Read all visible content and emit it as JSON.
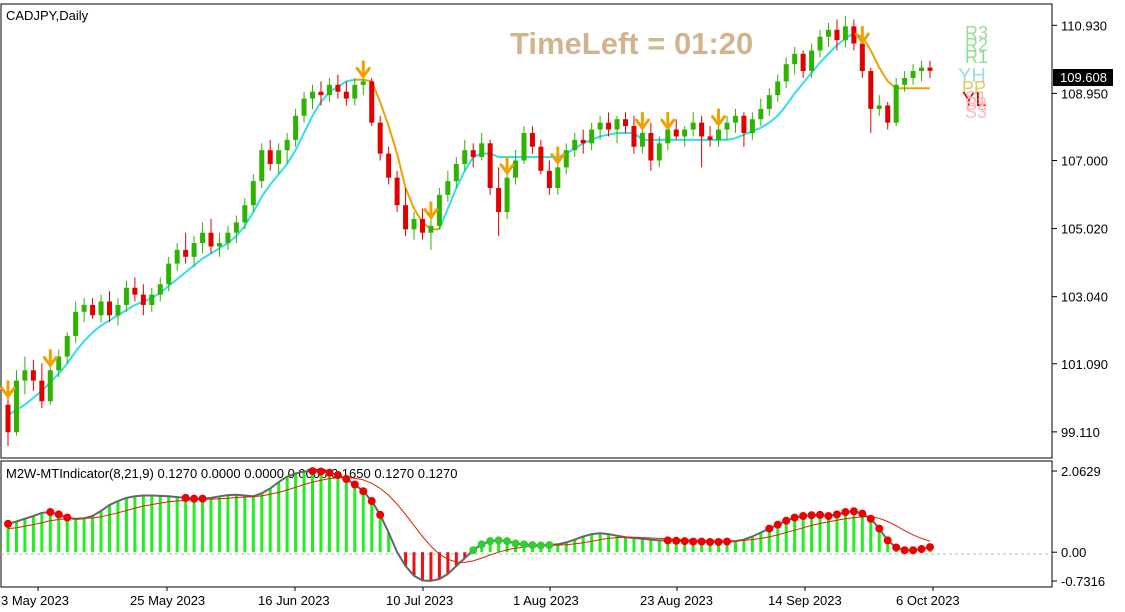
{
  "window": {
    "symbol_label": "CADJPY,Daily",
    "timeleft_label": "TimeLeft = 01:20",
    "current_price_label": "109.608"
  },
  "colors": {
    "bull_candle": "#2db300",
    "bear_candle": "#e00000",
    "signal_line_up": "#33ddee",
    "signal_line_down": "#f0a000",
    "arrow": "#f0a000",
    "timeleft": "#d2b48c",
    "hist_green": "#22ee22",
    "hist_red": "#ee1111",
    "dot_red": "#ee0000",
    "dot_green": "#33cc33",
    "signal_red_line": "#dd2200",
    "outline_gray": "#666666"
  },
  "icons": [
    "down-arrow-signal-icon"
  ],
  "pivot_labels": [
    "R3",
    "R2",
    "R1",
    "YH",
    "PP",
    "YL",
    "S1",
    "S2",
    "S3"
  ],
  "chart_data": [
    {
      "type": "candlestick",
      "title": "CADJPY,Daily",
      "xlabel": "",
      "ylabel": "",
      "ylim": [
        98.35,
        111.55
      ],
      "y_ticks": [
        "110.930",
        "108.950",
        "107.000",
        "105.020",
        "103.040",
        "101.090",
        "99.110"
      ],
      "x_ticks": [
        "3 May 2023",
        "25 May 2023",
        "16 Jun 2023",
        "10 Jul 2023",
        "1 Aug 2023",
        "23 Aug 2023",
        "14 Sep 2023",
        "6 Oct 2023"
      ],
      "current_price": 109.608,
      "candles_ohlc": [
        [
          99.9,
          100.2,
          98.7,
          99.1
        ],
        [
          99.1,
          100.9,
          99.0,
          100.6
        ],
        [
          100.6,
          101.3,
          100.2,
          100.9
        ],
        [
          100.9,
          101.2,
          100.3,
          100.6
        ],
        [
          100.6,
          101.1,
          99.8,
          100.0
        ],
        [
          100.0,
          101.1,
          99.9,
          100.9
        ],
        [
          100.9,
          101.5,
          100.7,
          101.3
        ],
        [
          101.3,
          102.0,
          101.1,
          101.9
        ],
        [
          101.9,
          102.9,
          101.7,
          102.6
        ],
        [
          102.6,
          103.0,
          102.3,
          102.8
        ],
        [
          102.8,
          103.0,
          102.4,
          102.5
        ],
        [
          102.5,
          103.1,
          102.3,
          102.9
        ],
        [
          102.9,
          103.2,
          102.3,
          102.5
        ],
        [
          102.5,
          103.0,
          102.2,
          102.8
        ],
        [
          102.8,
          103.5,
          102.6,
          103.3
        ],
        [
          103.3,
          103.6,
          102.9,
          103.1
        ],
        [
          103.1,
          103.4,
          102.5,
          102.8
        ],
        [
          102.8,
          103.3,
          102.6,
          103.1
        ],
        [
          103.1,
          103.6,
          102.9,
          103.4
        ],
        [
          103.4,
          104.2,
          103.2,
          104.0
        ],
        [
          104.0,
          104.6,
          103.8,
          104.4
        ],
        [
          104.4,
          104.9,
          104.0,
          104.2
        ],
        [
          104.2,
          104.8,
          103.9,
          104.6
        ],
        [
          104.6,
          105.2,
          104.3,
          104.9
        ],
        [
          104.9,
          105.3,
          104.3,
          104.5
        ],
        [
          104.5,
          104.9,
          104.2,
          104.6
        ],
        [
          104.6,
          105.1,
          104.4,
          104.9
        ],
        [
          104.9,
          105.4,
          104.6,
          105.2
        ],
        [
          105.2,
          105.9,
          105.0,
          105.7
        ],
        [
          105.7,
          106.6,
          105.5,
          106.4
        ],
        [
          106.4,
          107.5,
          106.2,
          107.3
        ],
        [
          107.3,
          107.6,
          106.7,
          106.9
        ],
        [
          106.9,
          107.5,
          106.6,
          107.3
        ],
        [
          107.3,
          107.8,
          106.9,
          107.6
        ],
        [
          107.6,
          108.5,
          107.4,
          108.3
        ],
        [
          108.3,
          109.0,
          108.1,
          108.8
        ],
        [
          108.8,
          109.2,
          108.5,
          109.0
        ],
        [
          109.0,
          109.3,
          108.6,
          108.9
        ],
        [
          108.9,
          109.4,
          108.7,
          109.2
        ],
        [
          109.2,
          109.5,
          108.8,
          109.0
        ],
        [
          109.0,
          109.3,
          108.6,
          108.8
        ],
        [
          108.8,
          109.4,
          108.6,
          109.2
        ],
        [
          109.2,
          109.5,
          108.9,
          109.3
        ],
        [
          109.3,
          109.4,
          108.0,
          108.1
        ],
        [
          108.1,
          108.3,
          107.0,
          107.2
        ],
        [
          107.2,
          107.4,
          106.3,
          106.5
        ],
        [
          106.5,
          106.7,
          105.5,
          105.7
        ],
        [
          105.7,
          106.2,
          104.8,
          105.0
        ],
        [
          105.0,
          105.5,
          104.7,
          105.3
        ],
        [
          105.3,
          105.6,
          104.7,
          104.9
        ],
        [
          104.9,
          105.4,
          104.4,
          105.1
        ],
        [
          105.1,
          106.2,
          105.0,
          106.0
        ],
        [
          106.0,
          106.7,
          105.8,
          106.4
        ],
        [
          106.4,
          107.1,
          106.2,
          106.9
        ],
        [
          106.9,
          107.6,
          106.7,
          107.3
        ],
        [
          107.3,
          107.5,
          106.8,
          107.1
        ],
        [
          107.1,
          107.8,
          107.0,
          107.5
        ],
        [
          107.5,
          107.6,
          106.0,
          106.2
        ],
        [
          106.2,
          106.8,
          104.8,
          105.5
        ],
        [
          105.5,
          106.7,
          105.3,
          106.5
        ],
        [
          106.5,
          107.3,
          106.3,
          107.0
        ],
        [
          107.0,
          108.0,
          106.9,
          107.8
        ],
        [
          107.8,
          108.0,
          107.2,
          107.4
        ],
        [
          107.4,
          107.6,
          106.6,
          106.7
        ],
        [
          106.7,
          107.0,
          106.0,
          106.2
        ],
        [
          106.2,
          107.0,
          106.0,
          106.8
        ],
        [
          106.8,
          107.5,
          106.6,
          107.3
        ],
        [
          107.3,
          107.8,
          107.1,
          107.6
        ],
        [
          107.6,
          107.9,
          107.2,
          107.5
        ],
        [
          107.5,
          108.1,
          107.3,
          107.9
        ],
        [
          107.9,
          108.3,
          107.6,
          108.1
        ],
        [
          108.1,
          108.4,
          107.7,
          107.9
        ],
        [
          107.9,
          108.3,
          107.5,
          108.2
        ],
        [
          108.2,
          108.4,
          107.8,
          108.0
        ],
        [
          108.0,
          108.3,
          107.2,
          107.4
        ],
        [
          107.4,
          108.0,
          107.2,
          107.8
        ],
        [
          107.8,
          108.1,
          106.7,
          107.0
        ],
        [
          107.0,
          107.7,
          106.8,
          107.5
        ],
        [
          107.5,
          108.0,
          107.3,
          107.9
        ],
        [
          107.9,
          108.2,
          107.6,
          107.7
        ],
        [
          107.7,
          108.0,
          107.4,
          107.9
        ],
        [
          107.9,
          108.4,
          107.7,
          108.1
        ],
        [
          108.1,
          108.3,
          106.8,
          107.7
        ],
        [
          107.7,
          108.0,
          107.4,
          107.6
        ],
        [
          107.6,
          108.1,
          107.4,
          107.9
        ],
        [
          107.9,
          108.3,
          107.6,
          108.1
        ],
        [
          108.1,
          108.5,
          107.8,
          108.3
        ],
        [
          108.3,
          108.4,
          107.4,
          107.8
        ],
        [
          107.8,
          108.4,
          107.6,
          108.2
        ],
        [
          108.2,
          108.8,
          108.0,
          108.5
        ],
        [
          108.5,
          109.1,
          108.3,
          108.9
        ],
        [
          108.9,
          109.5,
          108.7,
          109.3
        ],
        [
          109.3,
          110.0,
          109.1,
          109.8
        ],
        [
          109.8,
          110.3,
          109.5,
          110.1
        ],
        [
          110.1,
          110.2,
          109.4,
          109.6
        ],
        [
          109.6,
          110.4,
          109.4,
          110.2
        ],
        [
          110.2,
          110.8,
          110.0,
          110.6
        ],
        [
          110.6,
          111.0,
          110.3,
          110.8
        ],
        [
          110.8,
          111.1,
          110.2,
          110.5
        ],
        [
          110.5,
          111.2,
          110.3,
          110.9
        ],
        [
          110.9,
          111.1,
          110.2,
          110.4
        ],
        [
          110.4,
          110.5,
          109.4,
          109.6
        ],
        [
          109.6,
          109.7,
          107.8,
          108.5
        ],
        [
          108.5,
          108.9,
          108.3,
          108.6
        ],
        [
          108.6,
          108.7,
          107.9,
          108.1
        ],
        [
          108.1,
          109.4,
          108.0,
          109.2
        ],
        [
          109.2,
          109.6,
          109.0,
          109.4
        ],
        [
          109.4,
          109.8,
          109.2,
          109.6
        ],
        [
          109.6,
          109.9,
          109.3,
          109.7
        ],
        [
          109.7,
          109.9,
          109.4,
          109.608
        ]
      ],
      "signal_line": [
        99.6,
        99.75,
        99.9,
        100.1,
        100.3,
        100.55,
        100.8,
        101.1,
        101.45,
        101.75,
        102.0,
        102.2,
        102.35,
        102.5,
        102.65,
        102.8,
        102.9,
        103.0,
        103.15,
        103.35,
        103.55,
        103.75,
        103.95,
        104.15,
        104.3,
        104.45,
        104.6,
        104.8,
        105.1,
        105.5,
        105.95,
        106.3,
        106.6,
        106.9,
        107.3,
        107.8,
        108.3,
        108.7,
        109.0,
        109.15,
        109.3,
        109.35,
        109.35,
        109.3,
        108.7,
        108.0,
        107.2,
        106.2,
        105.6,
        105.2,
        105.0,
        105.0,
        105.6,
        106.2,
        106.7,
        107.1,
        107.2,
        107.2,
        107.1,
        107.1,
        107.1,
        107.1,
        107.1,
        107.1,
        107.1,
        107.1,
        107.2,
        107.35,
        107.5,
        107.6,
        107.7,
        107.75,
        107.8,
        107.8,
        107.8,
        107.6,
        107.6,
        107.6,
        107.6,
        107.6,
        107.6,
        107.6,
        107.6,
        107.6,
        107.6,
        107.6,
        107.65,
        107.75,
        107.85,
        107.95,
        108.1,
        108.3,
        108.6,
        108.95,
        109.25,
        109.55,
        109.85,
        110.1,
        110.35,
        110.55,
        110.7,
        110.6,
        110.2,
        109.7,
        109.3,
        109.1,
        109.1,
        109.1,
        109.1,
        109.1
      ],
      "signal_line_down_from_index": [
        [
          41,
          51
        ],
        [
          101,
          109
        ]
      ],
      "arrow_indices": [
        0,
        5,
        42,
        50,
        59,
        65,
        75,
        78,
        84,
        101
      ]
    },
    {
      "type": "bar",
      "title": "M2W-MTIndicator(8,21,9) 0.1270 0.0000 0.0000 0.0000 0.1650 0.1270 0.1270",
      "ylim": [
        -0.7316,
        2.0629
      ],
      "y_ticks": [
        "2.0629",
        "0.00",
        "-0.7316"
      ],
      "histogram": [
        0.72,
        0.78,
        0.85,
        0.92,
        1.0,
        1.02,
        0.96,
        0.88,
        0.84,
        0.86,
        0.92,
        1.05,
        1.2,
        1.3,
        1.38,
        1.42,
        1.44,
        1.44,
        1.43,
        1.42,
        1.4,
        1.38,
        1.36,
        1.36,
        1.38,
        1.42,
        1.45,
        1.46,
        1.44,
        1.42,
        1.5,
        1.62,
        1.78,
        1.92,
        2.0,
        2.05,
        2.06,
        2.05,
        2.02,
        1.96,
        1.86,
        1.72,
        1.55,
        1.3,
        0.95,
        0.5,
        0.0,
        -0.35,
        -0.6,
        -0.72,
        -0.73,
        -0.68,
        -0.55,
        -0.35,
        -0.15,
        0.05,
        0.2,
        0.28,
        0.3,
        0.28,
        0.22,
        0.2,
        0.18,
        0.17,
        0.18,
        0.2,
        0.25,
        0.32,
        0.4,
        0.46,
        0.48,
        0.46,
        0.42,
        0.38,
        0.36,
        0.34,
        0.32,
        0.3,
        0.3,
        0.29,
        0.28,
        0.27,
        0.27,
        0.26,
        0.26,
        0.27,
        0.28,
        0.32,
        0.4,
        0.5,
        0.6,
        0.7,
        0.8,
        0.88,
        0.92,
        0.94,
        0.95,
        0.92,
        0.96,
        1.02,
        1.04,
        0.98,
        0.85,
        0.6,
        0.3,
        0.12,
        0.05,
        0.05,
        0.08,
        0.13
      ],
      "signal": [
        0.6,
        0.62,
        0.66,
        0.7,
        0.75,
        0.8,
        0.83,
        0.85,
        0.86,
        0.86,
        0.87,
        0.9,
        0.95,
        1.0,
        1.06,
        1.12,
        1.17,
        1.21,
        1.25,
        1.28,
        1.3,
        1.32,
        1.33,
        1.34,
        1.35,
        1.36,
        1.37,
        1.39,
        1.4,
        1.41,
        1.43,
        1.47,
        1.52,
        1.58,
        1.65,
        1.72,
        1.78,
        1.83,
        1.87,
        1.89,
        1.9,
        1.88,
        1.84,
        1.75,
        1.62,
        1.45,
        1.22,
        0.96,
        0.68,
        0.4,
        0.15,
        -0.05,
        -0.18,
        -0.25,
        -0.26,
        -0.22,
        -0.15,
        -0.07,
        0.0,
        0.06,
        0.1,
        0.13,
        0.15,
        0.16,
        0.17,
        0.18,
        0.19,
        0.21,
        0.24,
        0.28,
        0.32,
        0.35,
        0.37,
        0.38,
        0.38,
        0.37,
        0.36,
        0.35,
        0.34,
        0.33,
        0.32,
        0.31,
        0.3,
        0.29,
        0.29,
        0.29,
        0.29,
        0.3,
        0.32,
        0.35,
        0.39,
        0.44,
        0.5,
        0.56,
        0.62,
        0.68,
        0.73,
        0.77,
        0.81,
        0.85,
        0.88,
        0.9,
        0.9,
        0.86,
        0.78,
        0.67,
        0.55,
        0.44,
        0.35,
        0.28
      ],
      "red_dot_indices": [
        0,
        5,
        6,
        7,
        21,
        22,
        23,
        36,
        37,
        38,
        39,
        40,
        41,
        42,
        43,
        44,
        78,
        79,
        80,
        81,
        82,
        83,
        84,
        85,
        90,
        91,
        92,
        93,
        94,
        95,
        96,
        97,
        98,
        99,
        100,
        101,
        102,
        103,
        104,
        105,
        106,
        107,
        108,
        109
      ],
      "green_dot_indices": [
        55,
        56,
        57,
        58,
        59,
        60,
        61,
        62,
        63,
        64
      ]
    }
  ]
}
